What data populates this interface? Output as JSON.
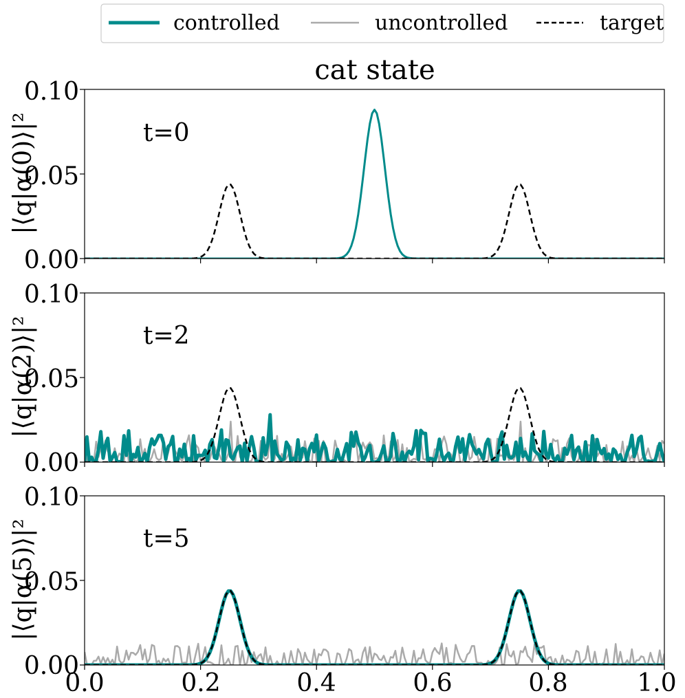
{
  "chart_data": {
    "type": "line",
    "title": "cat state",
    "xlim": [
      0.0,
      1.0
    ],
    "ylim": [
      0.0,
      0.1
    ],
    "x_ticks": [
      "0.0",
      "0.2",
      "0.4",
      "0.6",
      "0.8",
      "1.0"
    ],
    "x_tick_values": [
      0.0,
      0.2,
      0.4,
      0.6,
      0.8,
      1.0
    ],
    "y_ticks": [
      "0.00",
      "0.05",
      "0.10"
    ],
    "y_tick_values": [
      0.0,
      0.05,
      0.1
    ],
    "legend": {
      "placement": "top",
      "entries": [
        {
          "label": "controlled",
          "color": "#008b8b",
          "style": "thick-solid"
        },
        {
          "label": "uncontrolled",
          "color": "#aaaaaa",
          "style": "solid"
        },
        {
          "label": "target",
          "color": "#000000",
          "style": "dashed"
        }
      ]
    },
    "target": {
      "centers": [
        0.25,
        0.75
      ],
      "peak": 0.044,
      "sigma": 0.018
    },
    "panels": [
      {
        "annotation": "t=0",
        "ylabel": "|⟨q|α(0)⟩|²",
        "controlled": {
          "kind": "gaussian",
          "center": 0.5,
          "peak": 0.088,
          "sigma": 0.018
        },
        "uncontrolled": {
          "kind": "gaussian",
          "center": 0.5,
          "peak": 0.088,
          "sigma": 0.018
        }
      },
      {
        "annotation": "t=2",
        "ylabel": "|⟨q|α(2)⟩|²",
        "controlled": {
          "kind": "noise",
          "mean_level": 0.006,
          "max": 0.028,
          "spike_x": 0.32,
          "spike_y": 0.028
        },
        "uncontrolled": {
          "kind": "noise",
          "mean_level": 0.005,
          "max": 0.024,
          "spikes": [
            [
              0.25,
              0.024
            ],
            [
              0.75,
              0.024
            ]
          ]
        }
      },
      {
        "annotation": "t=5",
        "ylabel": "|⟨q|α(5)⟩|²",
        "controlled": {
          "kind": "gaussian-pair",
          "centers": [
            0.25,
            0.75
          ],
          "peak": 0.044,
          "sigma": 0.018
        },
        "uncontrolled": {
          "kind": "noise",
          "mean_level": 0.004,
          "max": 0.016
        }
      }
    ]
  }
}
